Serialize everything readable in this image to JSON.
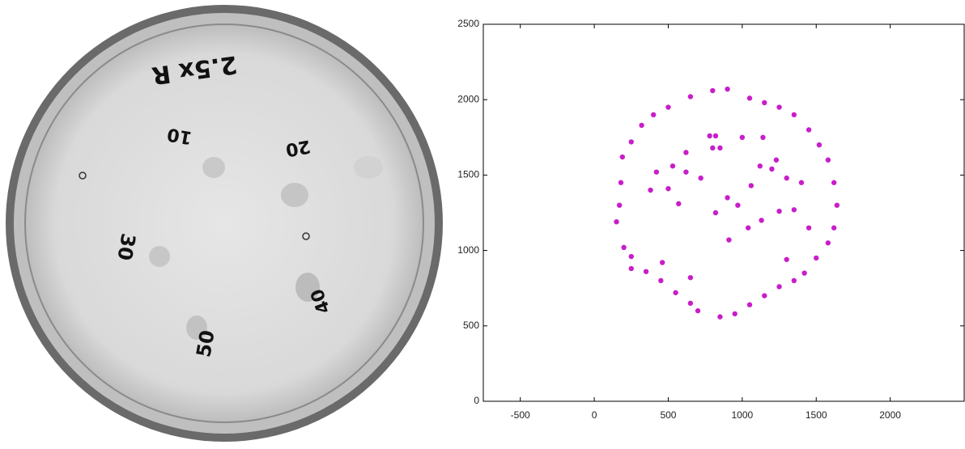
{
  "photo": {
    "labels": [
      "2.5x R",
      "10",
      "20",
      "30",
      "40",
      "50"
    ]
  },
  "chart_data": {
    "type": "scatter",
    "color": "#c81ec8",
    "xlim": [
      -750,
      2500
    ],
    "ylim": [
      0,
      2500
    ],
    "xticks": [
      -500,
      0,
      500,
      1000,
      1500,
      2000
    ],
    "yticks": [
      0,
      500,
      1000,
      1500,
      2000,
      2500
    ],
    "x": [
      500,
      650,
      800,
      900,
      1050,
      1150,
      1250,
      1350,
      1450,
      1520,
      1580,
      1620,
      1640,
      1620,
      1580,
      1500,
      1420,
      1350,
      1250,
      1150,
      1050,
      950,
      850,
      700,
      650,
      550,
      450,
      350,
      250,
      200,
      150,
      170,
      180,
      190,
      250,
      320,
      400,
      780,
      820,
      800,
      850,
      620,
      530,
      620,
      720,
      420,
      380,
      500,
      570,
      820,
      900,
      970,
      1060,
      1120,
      1200,
      1230,
      1300,
      1400,
      1130,
      1250,
      1350,
      910,
      1000,
      1140,
      460,
      650,
      250,
      1300,
      1450,
      1040
    ],
    "values": [
      1950,
      2020,
      2060,
      2070,
      2010,
      1980,
      1950,
      1900,
      1800,
      1700,
      1600,
      1450,
      1300,
      1150,
      1050,
      950,
      850,
      800,
      760,
      700,
      640,
      580,
      560,
      600,
      650,
      720,
      800,
      860,
      960,
      1020,
      1190,
      1300,
      1450,
      1620,
      1720,
      1830,
      1900,
      1760,
      1760,
      1680,
      1680,
      1650,
      1560,
      1520,
      1480,
      1520,
      1400,
      1410,
      1310,
      1250,
      1350,
      1300,
      1430,
      1560,
      1540,
      1600,
      1480,
      1450,
      1200,
      1260,
      1270,
      1070,
      1750,
      1750,
      920,
      820,
      880,
      940,
      1150,
      1150
    ]
  }
}
